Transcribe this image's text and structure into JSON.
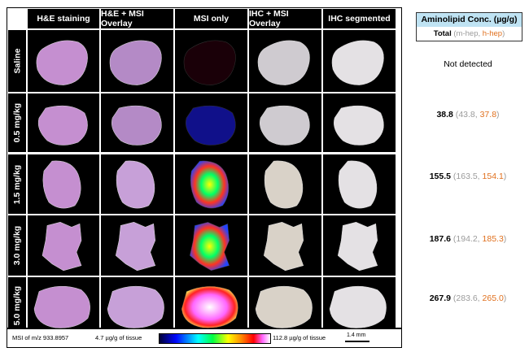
{
  "columns": [
    "H&E staining",
    "H&E + MSI Overlay",
    "MSI only",
    "IHC + MSI Overlay",
    "IHC segmented"
  ],
  "rows": [
    "Saline",
    "0.5 mg/kg",
    "1.5 mg/kg",
    "3.0 mg/kg",
    "5.0 mg/kg"
  ],
  "legend": {
    "msi_label": "MSI of m/z 933.8957",
    "min_label": "4.7 µg/g of tissue",
    "max_label": "112.8 µg/g of tissue",
    "scale_label": "1.4 mm"
  },
  "table": {
    "header": "Aminolipid Conc. (µg/g)",
    "sub_total": "Total",
    "sub_open": " (",
    "sub_mhep": "m-hep",
    "sub_sep": ", ",
    "sub_hhep": "h-hep",
    "sub_close": ")",
    "not_detected": "Not detected",
    "values": [
      {
        "total": "38.8",
        "mhep": "43.8",
        "hhep": "37.8"
      },
      {
        "total": "155.5",
        "mhep": "163.5",
        "hhep": "154.1"
      },
      {
        "total": "187.6",
        "mhep": "194.2",
        "hhep": "185.3"
      },
      {
        "total": "267.9",
        "mhep": "283.6",
        "hhep": "265.0"
      }
    ],
    "punct": {
      "open": " (",
      "sep": ", ",
      "close": ")"
    }
  },
  "colors": {
    "he": "#c58fd0",
    "ihc": "#d7d3d6",
    "grey_text": "#9b9b9b",
    "orange_text": "#e0701e",
    "header_bg": "#bfe3f3"
  }
}
